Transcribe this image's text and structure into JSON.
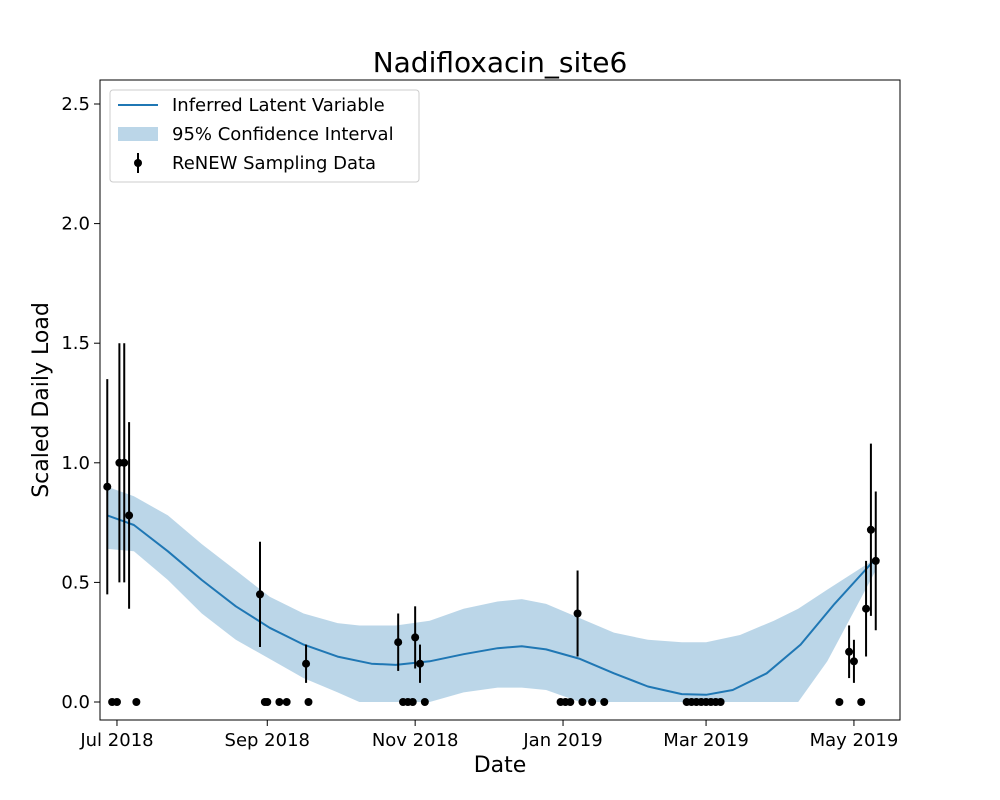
{
  "chart_data": {
    "type": "line",
    "title": "Nadifloxacin_site6",
    "xlabel": "Date",
    "ylabel": "Scaled Daily Load",
    "ylim": [
      0,
      2.5
    ],
    "xlim": [
      "2018-06-24",
      "2019-05-20"
    ],
    "grid": false,
    "legend_position": "top-left",
    "x_ticks": [
      {
        "date": "2018-07-01",
        "label": "Jul 2018"
      },
      {
        "date": "2018-09-01",
        "label": "Sep 2018"
      },
      {
        "date": "2018-11-01",
        "label": "Nov 2018"
      },
      {
        "date": "2019-01-01",
        "label": "Jan 2019"
      },
      {
        "date": "2019-03-01",
        "label": "Mar 2019"
      },
      {
        "date": "2019-05-01",
        "label": "May 2019"
      }
    ],
    "y_ticks": [
      {
        "value": 0,
        "label": "0.0"
      },
      {
        "value": 0.5,
        "label": "0.5"
      },
      {
        "value": 1.0,
        "label": "1.0"
      },
      {
        "value": 1.5,
        "label": "1.5"
      },
      {
        "value": 2.0,
        "label": "2.0"
      },
      {
        "value": 2.5,
        "label": "2.5"
      }
    ],
    "colors": {
      "line": "#1f77b4",
      "band": "#1f77b4",
      "points": "#000000"
    },
    "series": [
      {
        "name": "Inferred Latent Variable",
        "kind": "line",
        "points": [
          {
            "x": "2018-06-27",
            "y": 0.78
          },
          {
            "x": "2018-07-08",
            "y": 0.74
          },
          {
            "x": "2018-07-22",
            "y": 0.63
          },
          {
            "x": "2018-08-05",
            "y": 0.51
          },
          {
            "x": "2018-08-19",
            "y": 0.4
          },
          {
            "x": "2018-09-02",
            "y": 0.31
          },
          {
            "x": "2018-09-16",
            "y": 0.24
          },
          {
            "x": "2018-09-30",
            "y": 0.19
          },
          {
            "x": "2018-10-14",
            "y": 0.16
          },
          {
            "x": "2018-10-24",
            "y": 0.155
          },
          {
            "x": "2018-11-07",
            "y": 0.17
          },
          {
            "x": "2018-11-21",
            "y": 0.2
          },
          {
            "x": "2018-12-05",
            "y": 0.225
          },
          {
            "x": "2018-12-15",
            "y": 0.233
          },
          {
            "x": "2018-12-25",
            "y": 0.22
          },
          {
            "x": "2019-01-08",
            "y": 0.18
          },
          {
            "x": "2019-01-22",
            "y": 0.12
          },
          {
            "x": "2019-02-05",
            "y": 0.065
          },
          {
            "x": "2019-02-19",
            "y": 0.033
          },
          {
            "x": "2019-03-01",
            "y": 0.03
          },
          {
            "x": "2019-03-12",
            "y": 0.05
          },
          {
            "x": "2019-03-26",
            "y": 0.12
          },
          {
            "x": "2019-04-09",
            "y": 0.24
          },
          {
            "x": "2019-04-23",
            "y": 0.41
          },
          {
            "x": "2019-05-10",
            "y": 0.6
          }
        ]
      },
      {
        "name": "95% Confidence Interval",
        "kind": "band",
        "points": [
          {
            "x": "2018-06-27",
            "lo": 0.64,
            "hi": 0.9
          },
          {
            "x": "2018-07-08",
            "lo": 0.63,
            "hi": 0.86
          },
          {
            "x": "2018-07-22",
            "lo": 0.51,
            "hi": 0.78
          },
          {
            "x": "2018-08-05",
            "lo": 0.37,
            "hi": 0.66
          },
          {
            "x": "2018-08-19",
            "lo": 0.26,
            "hi": 0.55
          },
          {
            "x": "2018-09-02",
            "lo": 0.18,
            "hi": 0.44
          },
          {
            "x": "2018-09-16",
            "lo": 0.1,
            "hi": 0.37
          },
          {
            "x": "2018-09-30",
            "lo": 0.04,
            "hi": 0.33
          },
          {
            "x": "2018-10-09",
            "lo": 0.0,
            "hi": 0.32
          },
          {
            "x": "2018-10-24",
            "lo": 0.0,
            "hi": 0.32
          },
          {
            "x": "2018-11-07",
            "lo": 0.0,
            "hi": 0.34
          },
          {
            "x": "2018-11-21",
            "lo": 0.04,
            "hi": 0.39
          },
          {
            "x": "2018-12-05",
            "lo": 0.06,
            "hi": 0.42
          },
          {
            "x": "2018-12-15",
            "lo": 0.06,
            "hi": 0.43
          },
          {
            "x": "2018-12-25",
            "lo": 0.05,
            "hi": 0.41
          },
          {
            "x": "2019-01-08",
            "lo": 0.0,
            "hi": 0.35
          },
          {
            "x": "2019-01-22",
            "lo": 0.0,
            "hi": 0.29
          },
          {
            "x": "2019-02-05",
            "lo": 0.0,
            "hi": 0.26
          },
          {
            "x": "2019-02-19",
            "lo": 0.0,
            "hi": 0.25
          },
          {
            "x": "2019-03-01",
            "lo": 0.0,
            "hi": 0.25
          },
          {
            "x": "2019-03-15",
            "lo": 0.0,
            "hi": 0.28
          },
          {
            "x": "2019-03-29",
            "lo": 0.0,
            "hi": 0.34
          },
          {
            "x": "2019-04-08",
            "lo": 0.0,
            "hi": 0.39
          },
          {
            "x": "2019-04-20",
            "lo": 0.17,
            "hi": 0.47
          },
          {
            "x": "2019-05-10",
            "lo": 0.55,
            "hi": 0.6
          }
        ]
      },
      {
        "name": "ReNEW Sampling Data",
        "kind": "errorbar",
        "points": [
          {
            "x": "2018-06-27",
            "y": 0.9,
            "err": 0.45
          },
          {
            "x": "2018-06-29",
            "y": 0.0
          },
          {
            "x": "2018-07-01",
            "y": 0.0
          },
          {
            "x": "2018-07-02",
            "y": 1.0,
            "err": 0.5
          },
          {
            "x": "2018-07-04",
            "y": 1.0,
            "err": 0.5
          },
          {
            "x": "2018-07-06",
            "y": 0.78,
            "err": 0.39
          },
          {
            "x": "2018-07-09",
            "y": 0.0
          },
          {
            "x": "2018-08-29",
            "y": 0.45,
            "err": 0.22
          },
          {
            "x": "2018-08-31",
            "y": 0.0
          },
          {
            "x": "2018-09-01",
            "y": 0.0
          },
          {
            "x": "2018-09-06",
            "y": 0.0
          },
          {
            "x": "2018-09-09",
            "y": 0.0
          },
          {
            "x": "2018-09-17",
            "y": 0.16,
            "err": 0.08
          },
          {
            "x": "2018-09-18",
            "y": 0.0
          },
          {
            "x": "2018-10-25",
            "y": 0.25,
            "err": 0.12
          },
          {
            "x": "2018-10-27",
            "y": 0.0
          },
          {
            "x": "2018-10-29",
            "y": 0.0
          },
          {
            "x": "2018-10-31",
            "y": 0.0
          },
          {
            "x": "2018-11-01",
            "y": 0.27,
            "err": 0.13
          },
          {
            "x": "2018-11-03",
            "y": 0.16,
            "err": 0.08
          },
          {
            "x": "2018-11-05",
            "y": 0.0
          },
          {
            "x": "2018-12-31",
            "y": 0.0
          },
          {
            "x": "2019-01-02",
            "y": 0.0
          },
          {
            "x": "2019-01-04",
            "y": 0.0
          },
          {
            "x": "2019-01-07",
            "y": 0.37,
            "err": 0.18
          },
          {
            "x": "2019-01-09",
            "y": 0.0
          },
          {
            "x": "2019-01-13",
            "y": 0.0
          },
          {
            "x": "2019-01-18",
            "y": 0.0
          },
          {
            "x": "2019-02-21",
            "y": 0.0
          },
          {
            "x": "2019-02-23",
            "y": 0.0
          },
          {
            "x": "2019-02-25",
            "y": 0.0
          },
          {
            "x": "2019-02-27",
            "y": 0.0
          },
          {
            "x": "2019-03-01",
            "y": 0.0
          },
          {
            "x": "2019-03-03",
            "y": 0.0
          },
          {
            "x": "2019-03-05",
            "y": 0.0
          },
          {
            "x": "2019-03-07",
            "y": 0.0
          },
          {
            "x": "2019-04-25",
            "y": 0.0
          },
          {
            "x": "2019-04-29",
            "y": 0.21,
            "err": 0.11
          },
          {
            "x": "2019-05-01",
            "y": 0.17,
            "err": 0.09
          },
          {
            "x": "2019-05-04",
            "y": 0.0
          },
          {
            "x": "2019-05-06",
            "y": 0.39,
            "err": 0.2
          },
          {
            "x": "2019-05-08",
            "y": 0.72,
            "err": 0.36
          },
          {
            "x": "2019-05-10",
            "y": 0.59,
            "err": 0.29
          }
        ]
      }
    ]
  }
}
